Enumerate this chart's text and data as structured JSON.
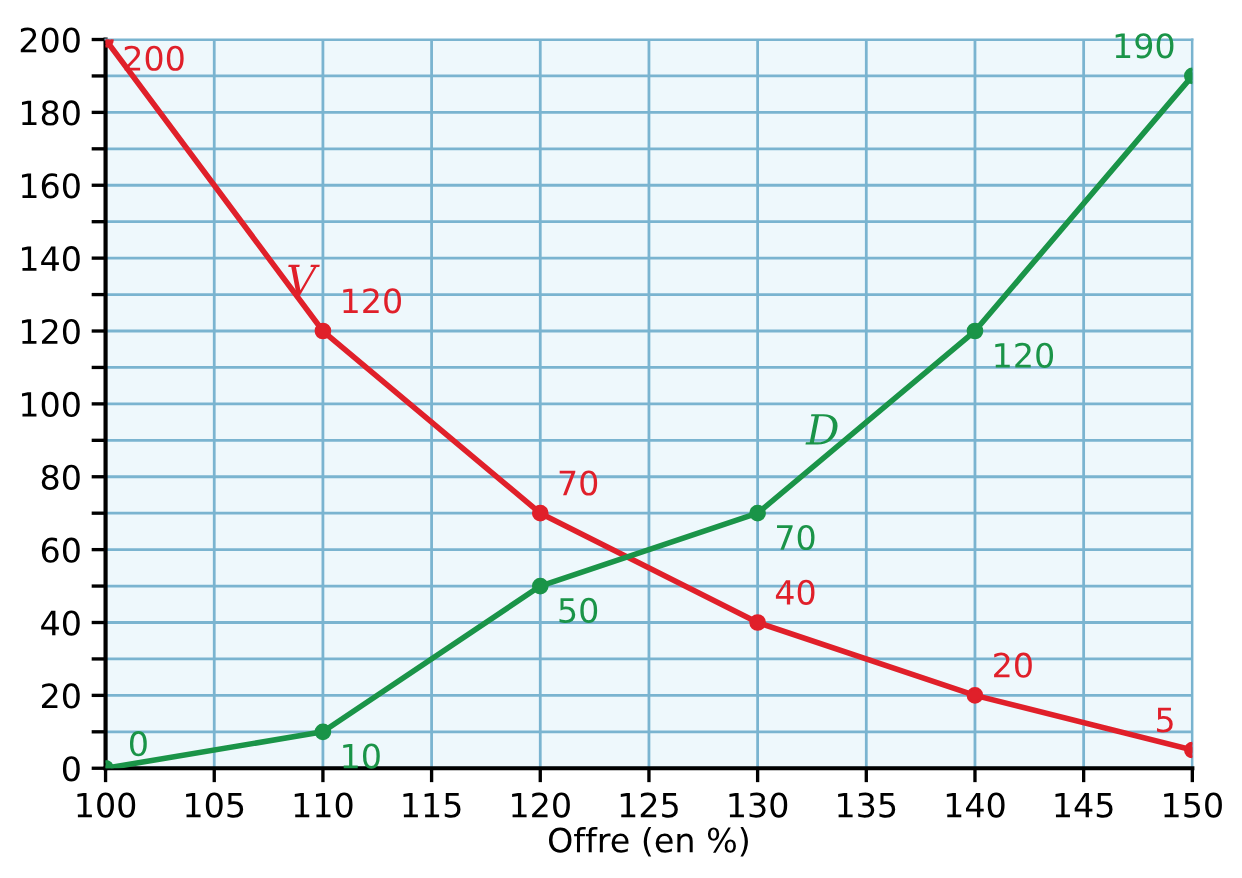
{
  "chart_data": {
    "type": "line",
    "xlabel": "Offre (en %)",
    "x": [
      100,
      110,
      120,
      130,
      140,
      150
    ],
    "series": [
      {
        "name": "V",
        "color": "#e0202a",
        "values": [
          200,
          120,
          70,
          40,
          20,
          5
        ]
      },
      {
        "name": "D",
        "color": "#1a9448",
        "values": [
          0,
          10,
          50,
          70,
          120,
          190
        ]
      }
    ],
    "xlim": [
      100,
      150
    ],
    "ylim": [
      0,
      200
    ],
    "xticks": [
      100,
      105,
      110,
      115,
      120,
      125,
      130,
      135,
      140,
      145,
      150
    ],
    "yticks": [
      0,
      {
        "value": 10,
        "label": null
      },
      20,
      {
        "value": 30,
        "label": null
      },
      40,
      {
        "value": 50,
        "label": null
      },
      60,
      {
        "value": 70,
        "label": null
      },
      80,
      {
        "value": 90,
        "label": null
      },
      100,
      {
        "value": 110,
        "label": null
      },
      120,
      {
        "value": 130,
        "label": null
      },
      140,
      {
        "value": 150,
        "label": null
      },
      160,
      {
        "value": 170,
        "label": null
      },
      180,
      {
        "value": 190,
        "label": null
      },
      200
    ],
    "grid": true,
    "data_labels": true,
    "marker": "circle",
    "line_style": "solid",
    "legend": false
  }
}
